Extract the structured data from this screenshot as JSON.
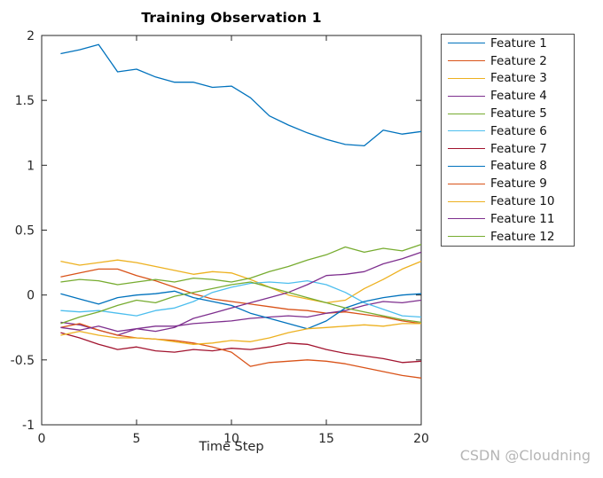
{
  "figure": {
    "title": "Training Observation 1",
    "xlabel": "Time Step"
  },
  "watermark": {
    "text": "CSDN @Cloudning",
    "color": "#b5b5b5"
  },
  "chart_data": {
    "type": "line",
    "title": "Training Observation 1",
    "xlabel": "Time Step",
    "ylabel": "",
    "xlim": [
      0,
      20
    ],
    "ylim": [
      -1,
      2
    ],
    "x_ticks": [
      0,
      5,
      10,
      15,
      20
    ],
    "x_tick_labels": [
      "0",
      "5",
      "10",
      "15",
      "20"
    ],
    "y_ticks": [
      -1,
      -0.5,
      0,
      0.5,
      1,
      1.5,
      2
    ],
    "y_tick_labels": [
      "-1",
      "-0.5",
      "0",
      "0.5",
      "1",
      "1.5",
      "2"
    ],
    "grid": false,
    "box": true,
    "axis_color": "#262626",
    "legend_position": "outside-right",
    "palette": [
      "#0072BD",
      "#D95319",
      "#EDB120",
      "#7E2F8E",
      "#77AC30",
      "#4DBEEE",
      "#A2142F"
    ],
    "x": [
      1,
      2,
      3,
      4,
      5,
      6,
      7,
      8,
      9,
      10,
      11,
      12,
      13,
      14,
      15,
      16,
      17,
      18,
      19,
      20
    ],
    "series": [
      {
        "name": "Feature 1",
        "color": "#0072BD",
        "values": [
          1.86,
          1.89,
          1.93,
          1.72,
          1.74,
          1.68,
          1.64,
          1.64,
          1.6,
          1.61,
          1.52,
          1.38,
          1.31,
          1.25,
          1.2,
          1.16,
          1.15,
          1.27,
          1.24,
          1.26
        ]
      },
      {
        "name": "Feature 2",
        "color": "#D95319",
        "values": [
          0.14,
          0.17,
          0.2,
          0.2,
          0.15,
          0.11,
          0.06,
          0.01,
          -0.03,
          -0.05,
          -0.07,
          -0.09,
          -0.11,
          -0.12,
          -0.14,
          -0.13,
          -0.15,
          -0.17,
          -0.2,
          -0.22
        ]
      },
      {
        "name": "Feature 3",
        "color": "#EDB120",
        "values": [
          0.26,
          0.23,
          0.25,
          0.27,
          0.25,
          0.22,
          0.19,
          0.16,
          0.18,
          0.17,
          0.12,
          0.06,
          0.0,
          -0.03,
          -0.06,
          -0.04,
          0.05,
          0.12,
          0.2,
          0.26
        ]
      },
      {
        "name": "Feature 4",
        "color": "#7E2F8E",
        "values": [
          -0.21,
          -0.23,
          -0.27,
          -0.31,
          -0.26,
          -0.24,
          -0.24,
          -0.22,
          -0.21,
          -0.2,
          -0.18,
          -0.17,
          -0.16,
          -0.17,
          -0.14,
          -0.12,
          -0.08,
          -0.05,
          -0.06,
          -0.04
        ]
      },
      {
        "name": "Feature 5",
        "color": "#77AC30",
        "values": [
          0.1,
          0.12,
          0.11,
          0.08,
          0.1,
          0.12,
          0.1,
          0.13,
          0.12,
          0.1,
          0.13,
          0.18,
          0.22,
          0.27,
          0.31,
          0.37,
          0.33,
          0.36,
          0.34,
          0.39
        ]
      },
      {
        "name": "Feature 6",
        "color": "#4DBEEE",
        "values": [
          -0.12,
          -0.13,
          -0.12,
          -0.14,
          -0.16,
          -0.12,
          -0.1,
          -0.05,
          0.02,
          0.06,
          0.09,
          0.1,
          0.09,
          0.11,
          0.08,
          0.02,
          -0.06,
          -0.11,
          -0.16,
          -0.17
        ]
      },
      {
        "name": "Feature 7",
        "color": "#A2142F",
        "values": [
          -0.29,
          -0.33,
          -0.38,
          -0.42,
          -0.4,
          -0.43,
          -0.44,
          -0.42,
          -0.43,
          -0.41,
          -0.42,
          -0.4,
          -0.37,
          -0.38,
          -0.42,
          -0.45,
          -0.47,
          -0.49,
          -0.52,
          -0.51
        ]
      },
      {
        "name": "Feature 8",
        "color": "#0072BD",
        "values": [
          0.01,
          -0.03,
          -0.07,
          -0.02,
          0.0,
          0.01,
          0.03,
          -0.02,
          -0.05,
          -0.08,
          -0.14,
          -0.18,
          -0.22,
          -0.26,
          -0.2,
          -0.1,
          -0.05,
          -0.02,
          0.0,
          0.01
        ]
      },
      {
        "name": "Feature 9",
        "color": "#D95319",
        "values": [
          -0.25,
          -0.22,
          -0.27,
          -0.31,
          -0.33,
          -0.34,
          -0.35,
          -0.37,
          -0.4,
          -0.44,
          -0.55,
          -0.52,
          -0.51,
          -0.5,
          -0.51,
          -0.53,
          -0.56,
          -0.59,
          -0.62,
          -0.64
        ]
      },
      {
        "name": "Feature 10",
        "color": "#EDB120",
        "values": [
          -0.31,
          -0.28,
          -0.31,
          -0.33,
          -0.33,
          -0.34,
          -0.36,
          -0.38,
          -0.37,
          -0.35,
          -0.36,
          -0.33,
          -0.29,
          -0.26,
          -0.25,
          -0.24,
          -0.23,
          -0.24,
          -0.22,
          -0.22
        ]
      },
      {
        "name": "Feature 11",
        "color": "#7E2F8E",
        "values": [
          -0.25,
          -0.27,
          -0.24,
          -0.28,
          -0.26,
          -0.28,
          -0.25,
          -0.18,
          -0.14,
          -0.1,
          -0.06,
          -0.02,
          0.02,
          0.08,
          0.15,
          0.16,
          0.18,
          0.24,
          0.28,
          0.33
        ]
      },
      {
        "name": "Feature 12",
        "color": "#77AC30",
        "values": [
          -0.22,
          -0.17,
          -0.13,
          -0.08,
          -0.04,
          -0.06,
          -0.01,
          0.02,
          0.05,
          0.08,
          0.1,
          0.06,
          0.02,
          -0.02,
          -0.06,
          -0.1,
          -0.13,
          -0.16,
          -0.19,
          -0.21
        ]
      }
    ]
  }
}
